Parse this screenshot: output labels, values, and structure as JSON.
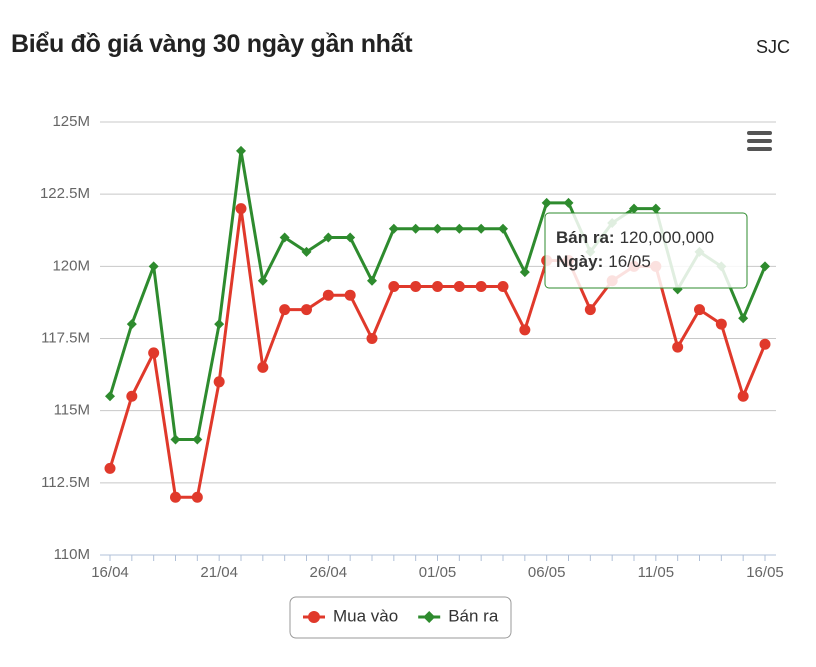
{
  "header": {
    "selector": "SJC"
  },
  "chart_data": {
    "type": "line",
    "title": "Biểu đồ giá vàng 30 ngày gần nhất",
    "categories": [
      "16/04",
      null,
      null,
      null,
      null,
      "21/04",
      null,
      null,
      null,
      null,
      "26/04",
      null,
      null,
      null,
      null,
      "01/05",
      null,
      null,
      null,
      null,
      "06/05",
      null,
      null,
      null,
      null,
      "11/05",
      null,
      null,
      null,
      null,
      "16/05"
    ],
    "series": [
      {
        "name": "Mua vào",
        "color": "#e0392b",
        "marker": "circle",
        "values": [
          113,
          115.5,
          117,
          112,
          112,
          116,
          122,
          116.5,
          118.5,
          118.5,
          119,
          119,
          117.5,
          119.3,
          119.3,
          119.3,
          119.3,
          119.3,
          119.3,
          117.8,
          120.2,
          120.2,
          118.5,
          119.5,
          120,
          120,
          117.2,
          118.5,
          118,
          115.5,
          117.3
        ]
      },
      {
        "name": "Bán ra",
        "color": "#2e8b2e",
        "marker": "diamond",
        "values": [
          115.5,
          118,
          120,
          114,
          114,
          118,
          124,
          119.5,
          121,
          120.5,
          121,
          121,
          119.5,
          121.3,
          121.3,
          121.3,
          121.3,
          121.3,
          121.3,
          119.8,
          122.2,
          122.2,
          120.5,
          121.5,
          122,
          122,
          119.2,
          120.5,
          120,
          118.2,
          120
        ]
      }
    ],
    "ylim": [
      110,
      125
    ],
    "yticks": [
      {
        "value": 110,
        "label": "110M"
      },
      {
        "value": 112.5,
        "label": "112.5M"
      },
      {
        "value": 115,
        "label": "115M"
      },
      {
        "value": 117.5,
        "label": "117.5M"
      },
      {
        "value": 120,
        "label": "120M"
      },
      {
        "value": 122.5,
        "label": "122.5M"
      },
      {
        "value": 125,
        "label": "125M"
      }
    ],
    "grid": true,
    "legend": "bottom",
    "tooltip": {
      "rows": [
        {
          "key": "Bán ra:",
          "text": "120,000,000"
        },
        {
          "key": "Ngày:",
          "text": "16/05"
        }
      ]
    }
  }
}
